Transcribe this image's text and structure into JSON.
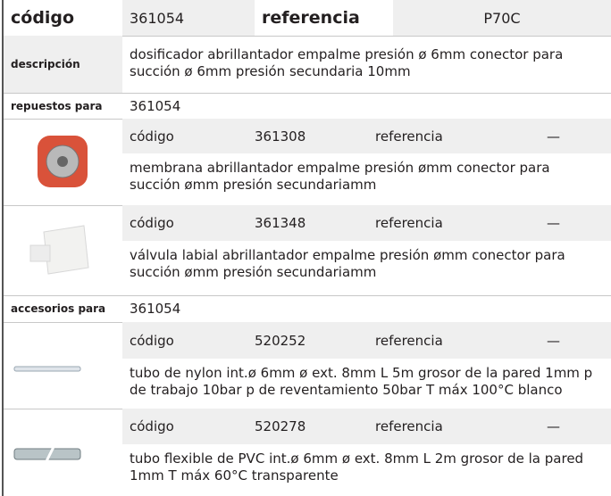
{
  "header": {
    "code_label": "código",
    "code": "361054",
    "ref_label": "referencia",
    "ref": "P70C"
  },
  "description": {
    "label": "descripción",
    "text": "dosificador  abrillantador empalme presión ø 6mm conector para succión ø 6mm presión secundaria 10mm"
  },
  "spares": {
    "label": "repuestos para",
    "code": "361054",
    "items": [
      {
        "code_label": "código",
        "code": "361308",
        "ref_label": "referencia",
        "ref": "—",
        "text": "membrana  abrillantador empalme presión ømm conector para succión ømm presión secundariamm"
      },
      {
        "code_label": "código",
        "code": "361348",
        "ref_label": "referencia",
        "ref": "—",
        "text": "válvula labial  abrillantador empalme presión ømm conector para succión ømm presión secundariamm"
      }
    ]
  },
  "accessories": {
    "label": "accesorios para",
    "code": "361054",
    "items": [
      {
        "code_label": "código",
        "code": "520252",
        "ref_label": "referencia",
        "ref": "—",
        "text": "tubo de nylon  int.ø 6mm ø ext. 8mm L 5m grosor de la pared 1mm p de trabajo 10bar p de reventamiento 50bar T máx 100°C blanco"
      },
      {
        "code_label": "código",
        "code": "520278",
        "ref_label": "referencia",
        "ref": "—",
        "text": "tubo flexible de PVC  int.ø 6mm ø ext. 8mm L 2m grosor de la pared 1mm T máx 60°C transparente"
      }
    ]
  }
}
